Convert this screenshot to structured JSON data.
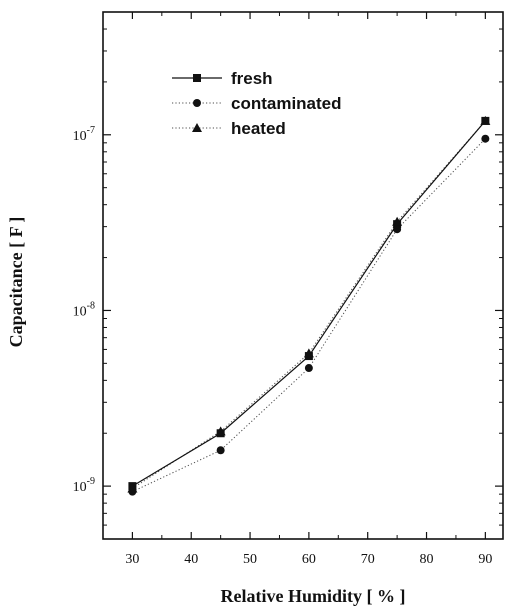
{
  "chart_data": {
    "type": "line",
    "title": "",
    "xlabel": "Relative Humidity [ % ]",
    "ylabel": "Capacitance [ F ]",
    "x": [
      30,
      45,
      60,
      75,
      90
    ],
    "xlim": [
      25,
      93
    ],
    "ylim": [
      5e-10,
      5e-07
    ],
    "y_scale": "log",
    "x_ticks": [
      30,
      40,
      50,
      60,
      70,
      80,
      90
    ],
    "y_ticks": [
      {
        "value": 1e-09,
        "label_base": "10",
        "label_exp": "-9"
      },
      {
        "value": 1e-08,
        "label_base": "10",
        "label_exp": "-8"
      },
      {
        "value": 1e-07,
        "label_base": "10",
        "label_exp": "-7"
      }
    ],
    "grid": false,
    "legend_position": "upper-left",
    "series": [
      {
        "name": "fresh",
        "marker": "square",
        "line_style": "solid",
        "color": "#111111",
        "values": [
          1e-09,
          2e-09,
          5.5e-09,
          3.1e-08,
          1.2e-07
        ]
      },
      {
        "name": "contaminated",
        "marker": "circle",
        "line_style": "dotted",
        "color": "#111111",
        "values": [
          9.3e-10,
          1.6e-09,
          4.7e-09,
          2.9e-08,
          9.5e-08
        ]
      },
      {
        "name": "heated",
        "marker": "triangle",
        "line_style": "dotted",
        "color": "#111111",
        "values": [
          9.7e-10,
          2.05e-09,
          5.7e-09,
          3.2e-08,
          1.2e-07
        ]
      }
    ]
  }
}
